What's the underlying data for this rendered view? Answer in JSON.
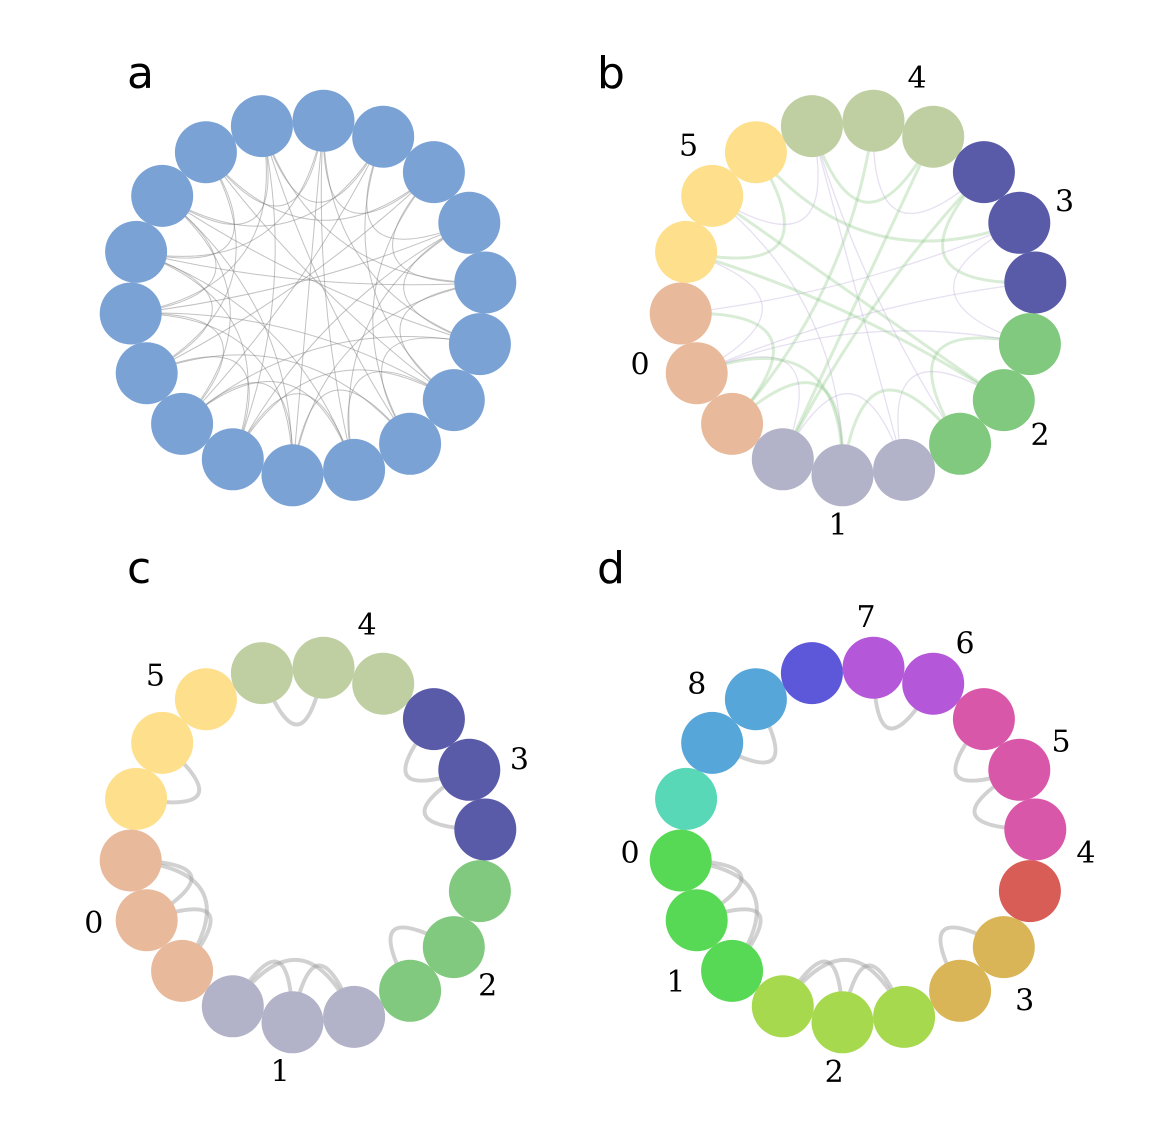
{
  "panels": [
    {
      "letter": "a",
      "node_colors": [
        "#7aa2d5",
        "#7aa2d5",
        "#7aa2d5",
        "#7aa2d5",
        "#7aa2d5",
        "#7aa2d5",
        "#7aa2d5",
        "#7aa2d5",
        "#7aa2d5",
        "#7aa2d5",
        "#7aa2d5",
        "#7aa2d5",
        "#7aa2d5",
        "#7aa2d5",
        "#7aa2d5",
        "#7aa2d5",
        "#7aa2d5",
        "#7aa2d5"
      ],
      "edge_style": "thin-grey",
      "edge_color": "#777777",
      "edges": [
        [
          0,
          4
        ],
        [
          0,
          6
        ],
        [
          0,
          9
        ],
        [
          0,
          13
        ],
        [
          1,
          5
        ],
        [
          1,
          8
        ],
        [
          1,
          12
        ],
        [
          1,
          15
        ],
        [
          2,
          6
        ],
        [
          2,
          10
        ],
        [
          2,
          14
        ],
        [
          2,
          17
        ],
        [
          3,
          7
        ],
        [
          3,
          11
        ],
        [
          3,
          16
        ],
        [
          4,
          8
        ],
        [
          4,
          12
        ],
        [
          4,
          15
        ],
        [
          5,
          9
        ],
        [
          5,
          13
        ],
        [
          5,
          17
        ],
        [
          6,
          10
        ],
        [
          6,
          14
        ],
        [
          7,
          11
        ],
        [
          7,
          15
        ],
        [
          8,
          13
        ],
        [
          8,
          16
        ],
        [
          9,
          14
        ],
        [
          9,
          17
        ],
        [
          10,
          15
        ],
        [
          11,
          16
        ],
        [
          12,
          17
        ],
        [
          0,
          2
        ],
        [
          3,
          5
        ],
        [
          6,
          8
        ],
        [
          9,
          11
        ],
        [
          12,
          14
        ],
        [
          15,
          17
        ],
        [
          1,
          3
        ],
        [
          4,
          6
        ],
        [
          7,
          9
        ],
        [
          10,
          12
        ],
        [
          13,
          15
        ],
        [
          16,
          0
        ],
        [
          2,
          4
        ],
        [
          5,
          7
        ],
        [
          8,
          10
        ],
        [
          11,
          13
        ],
        [
          14,
          16
        ],
        [
          17,
          1
        ]
      ],
      "group_labels": []
    },
    {
      "letter": "b",
      "node_colors": [
        "#b2b2c8",
        "#b2b2c8",
        "#e8b99b",
        "#e8b99b",
        "#e8b99b",
        "#fedf8c",
        "#fedf8c",
        "#fedf8c",
        "#bfcfa2",
        "#bfcfa2",
        "#bfcfa2",
        "#5a5ba8",
        "#5a5ba8",
        "#5a5ba8",
        "#80c97e",
        "#80c97e",
        "#80c97e",
        "#b2b2c8"
      ],
      "edge_style": "faint-coloured",
      "edges": [
        [
          0,
          2
        ],
        [
          1,
          3
        ],
        [
          0,
          3
        ],
        [
          17,
          1
        ],
        [
          2,
          4
        ],
        [
          3,
          5
        ],
        [
          5,
          7
        ],
        [
          6,
          8
        ],
        [
          8,
          10
        ],
        [
          9,
          11
        ],
        [
          11,
          13
        ],
        [
          12,
          14
        ],
        [
          14,
          16
        ],
        [
          15,
          17
        ],
        [
          16,
          0
        ],
        [
          0,
          6
        ],
        [
          2,
          9
        ],
        [
          4,
          12
        ],
        [
          6,
          15
        ],
        [
          8,
          17
        ],
        [
          10,
          1
        ],
        [
          13,
          3
        ],
        [
          15,
          5
        ],
        [
          16,
          8
        ],
        [
          1,
          11
        ],
        [
          3,
          14
        ],
        [
          7,
          12
        ]
      ],
      "edge_colors": [
        "#8ec98a",
        "#b7a6d8"
      ],
      "group_labels": [
        {
          "text": "4",
          "angle": -75
        },
        {
          "text": "3",
          "angle": -25
        },
        {
          "text": "2",
          "angle": 37
        },
        {
          "text": "1",
          "angle": 95
        },
        {
          "text": "0",
          "angle": 163
        },
        {
          "text": "5",
          "angle": 222
        }
      ]
    },
    {
      "letter": "c",
      "node_colors": [
        "#b2b2c8",
        "#b2b2c8",
        "#e8b99b",
        "#e8b99b",
        "#e8b99b",
        "#fedf8c",
        "#fedf8c",
        "#fedf8c",
        "#bfcfa2",
        "#bfcfa2",
        "#bfcfa2",
        "#5a5ba8",
        "#5a5ba8",
        "#5a5ba8",
        "#80c97e",
        "#80c97e",
        "#80c97e",
        "#b2b2c8"
      ],
      "edge_style": "thick-loop",
      "edge_color": "#999999",
      "edges": [
        [
          17,
          1
        ],
        [
          17,
          0
        ],
        [
          0,
          1
        ],
        [
          2,
          4
        ],
        [
          3,
          4
        ],
        [
          2,
          3
        ],
        [
          5,
          6
        ],
        [
          8,
          9
        ],
        [
          11,
          12
        ],
        [
          12,
          13
        ],
        [
          15,
          16
        ]
      ],
      "group_labels": [
        {
          "text": "4",
          "angle": -75
        },
        {
          "text": "3",
          "angle": -22
        },
        {
          "text": "2",
          "angle": 38
        },
        {
          "text": "1",
          "angle": 97
        },
        {
          "text": "0",
          "angle": 160
        },
        {
          "text": "5",
          "angle": 228
        }
      ]
    },
    {
      "letter": "d",
      "node_colors": [
        "#a7d94f",
        "#a7d94f",
        "#57d955",
        "#57d955",
        "#57d955",
        "#58d8b7",
        "#57a6d9",
        "#57a6d9",
        "#5d57d9",
        "#b457d9",
        "#b457d9",
        "#d957a9",
        "#d957a9",
        "#d957a9",
        "#d95d57",
        "#d9b557",
        "#d9b557",
        "#a7d94f"
      ],
      "edge_style": "thick-loop",
      "edge_color": "#999999",
      "edges": [
        [
          17,
          1
        ],
        [
          17,
          0
        ],
        [
          0,
          1
        ],
        [
          2,
          4
        ],
        [
          3,
          4
        ],
        [
          2,
          3
        ],
        [
          6,
          7
        ],
        [
          9,
          10
        ],
        [
          11,
          12
        ],
        [
          12,
          13
        ],
        [
          15,
          16
        ]
      ],
      "group_labels": [
        {
          "text": "7",
          "angle": -88
        },
        {
          "text": "6",
          "angle": -62
        },
        {
          "text": "5",
          "angle": -27
        },
        {
          "text": "4",
          "angle": 2
        },
        {
          "text": "3",
          "angle": 43
        },
        {
          "text": "2",
          "angle": 96
        },
        {
          "text": "1",
          "angle": 143
        },
        {
          "text": "0",
          "angle": 178
        },
        {
          "text": "8",
          "angle": 225
        }
      ]
    }
  ]
}
